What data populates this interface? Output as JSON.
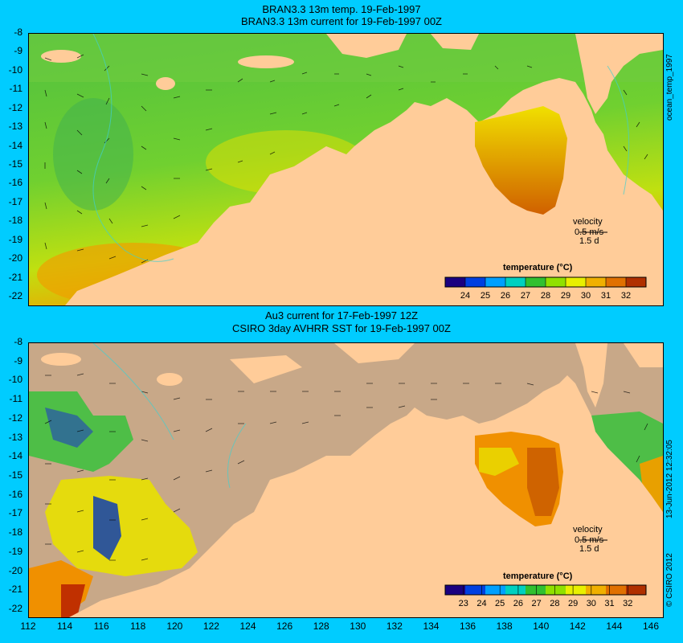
{
  "top_panel": {
    "title_line1": "BRAN3.3 13m temp. 19-Feb-1997",
    "title_line2": "BRAN3.3 13m current for 19-Feb-1997 00Z",
    "velocity_label": "velocity",
    "velocity_scale": "0.5 m/s",
    "velocity_time": "1.5 d",
    "colorbar_title": "temperature (°C)",
    "colorbar_ticks": [
      "24",
      "25",
      "26",
      "27",
      "28",
      "29",
      "30",
      "31",
      "32"
    ],
    "side_label": "ocean_temp_1997"
  },
  "bottom_panel": {
    "title_line1": "Au3 current for 17-Feb-1997 12Z",
    "title_line2": "CSIRO 3day AVHRR SST for 19-Feb-1997 00Z",
    "velocity_label": "velocity",
    "velocity_scale": "0.5 m/s",
    "velocity_time": "1.5 d",
    "colorbar_title": "temperature (°C)",
    "colorbar_ticks": [
      "23",
      "24",
      "25",
      "26",
      "27",
      "28",
      "29",
      "30",
      "31",
      "32"
    ],
    "side_label_date": "13-Jun-2012 12:32:05",
    "side_label_copyright": "© CSIRO 2012"
  },
  "axes": {
    "lat_ticks": [
      "-8",
      "-9",
      "-10",
      "-11",
      "-12",
      "-13",
      "-14",
      "-15",
      "-16",
      "-17",
      "-18",
      "-19",
      "-20",
      "-21",
      "-22"
    ],
    "lon_ticks": [
      "112",
      "114",
      "116",
      "118",
      "120",
      "122",
      "124",
      "126",
      "128",
      "130",
      "132",
      "134",
      "136",
      "138",
      "140",
      "142",
      "144",
      "146"
    ]
  },
  "colors": {
    "background": "#00ccff",
    "land": "#ffcc99",
    "no_data": "#c8a888",
    "colorbar": [
      "#1a0080",
      "#0040e0",
      "#00a0ff",
      "#00d0c0",
      "#30c030",
      "#90e000",
      "#e8f000",
      "#f0b000",
      "#e07000",
      "#b03000"
    ]
  }
}
